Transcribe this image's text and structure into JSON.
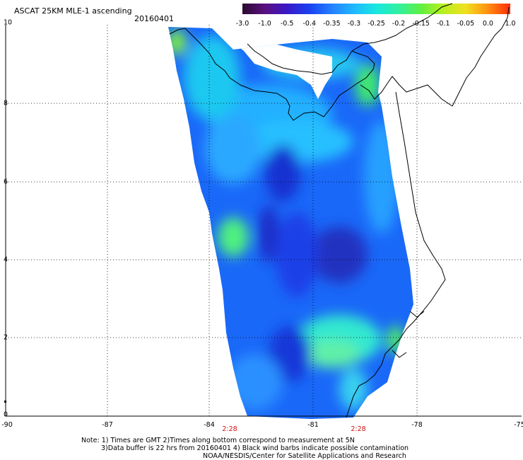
{
  "title": "ASCAT 25KM MLE-1 ascending",
  "date": "20160401",
  "colorbar": {
    "ticks": [
      "-3.0",
      "-1.0",
      "-0.5",
      "-0.4",
      "-0.35",
      "-0.3",
      "-0.25",
      "-0.2",
      "-0.15",
      "-0.1",
      "-0.05",
      "0.0",
      "1.0"
    ],
    "colors": [
      "#2a0a2e",
      "#5a1080",
      "#3a18c8",
      "#1a40f0",
      "#2280ff",
      "#20b8ff",
      "#18e8e0",
      "#30f0a0",
      "#60f040",
      "#b8f020",
      "#f0e020",
      "#ff9010",
      "#ff2a0a"
    ]
  },
  "axes": {
    "lon_labels": [
      "-90",
      "-87",
      "-84",
      "-81",
      "-78",
      "-75"
    ],
    "lat_labels": [
      "10",
      "8",
      "6",
      "4",
      "2",
      "0"
    ]
  },
  "time_labels": [
    "2:28",
    "2:28"
  ],
  "notes": [
    "Note: 1) Times are GMT 2)Times along bottom correspond to measurement at 5N",
    "3)Data buffer is 22 hrs from 20160401 4) Black wind barbs indicate possible contamination",
    "NOAA/NESDIS/Center for Satellite Applications and Research"
  ]
}
